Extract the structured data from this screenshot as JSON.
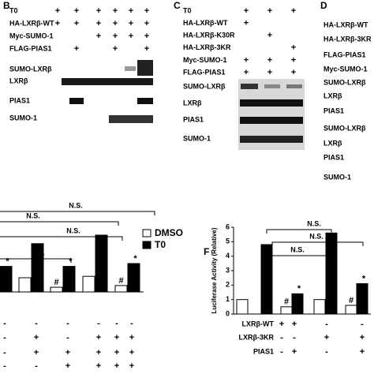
{
  "panels": [
    {
      "label": "B",
      "conditions": [
        {
          "name": "T0",
          "marks": [
            "+",
            "+",
            "+",
            "+",
            "+",
            "+"
          ]
        },
        {
          "name": "HA-LXRβ-WT",
          "marks": [
            "+",
            "+",
            "+",
            "+",
            "+",
            "+"
          ]
        },
        {
          "name": "Myc-SUMO-1",
          "marks": [
            null,
            null,
            "+",
            "+",
            "+",
            "+"
          ]
        },
        {
          "name": "FLAG-PIAS1",
          "marks": [
            null,
            "+",
            null,
            "+",
            null,
            "+"
          ]
        }
      ],
      "bands": [
        "SUMO-LXRβ",
        "LXRβ",
        "PIAS1",
        "SUMO-1"
      ]
    },
    {
      "label": "C",
      "conditions": [
        {
          "name": "T0",
          "marks": [
            "+",
            "+",
            "+"
          ]
        },
        {
          "name": "HA-LXRβ-WT",
          "marks": [
            "+",
            null,
            null
          ]
        },
        {
          "name": "HA-LXRβ-K30R",
          "marks": [
            null,
            "+",
            null
          ]
        },
        {
          "name": "HA-LXRβ-3KR",
          "marks": [
            null,
            null,
            "+"
          ]
        },
        {
          "name": "Myc-SUMO-1",
          "marks": [
            "+",
            "+",
            "+"
          ]
        },
        {
          "name": "FLAG-PIAS1",
          "marks": [
            "+",
            "+",
            "+"
          ]
        }
      ],
      "bands": [
        "SUMO-LXRβ",
        "LXRβ",
        "PIAS1",
        "SUMO-1"
      ]
    },
    {
      "label": "D",
      "labels": [
        "HA-LXRβ-WT",
        "HA-LXRβ-3KR",
        "FLAG-PIAS1",
        "Myc-SUMO-1",
        "SUMO-LXRβ",
        "LXRβ",
        "PIAS1",
        "SUMO-LXRβ",
        "LXRβ",
        "PIAS1",
        "SUMO-1"
      ]
    }
  ],
  "chart_data": [
    {
      "type": "bar",
      "categories": [
        null,
        null,
        null,
        null,
        null
      ],
      "series": [
        {
          "name": "DMSO",
          "color": "#ffffff",
          "values": [
            null,
            1,
            0.33,
            1.1,
            0.45
          ],
          "markers": [
            null,
            null,
            "#",
            null,
            "#"
          ]
        },
        {
          "name": "T0",
          "color": "#000000",
          "values": [
            1.8,
            3.4,
            1.8,
            4.0,
            2.0
          ],
          "markers": [
            "*",
            null,
            "*",
            null,
            "*"
          ]
        }
      ],
      "annotations": [
        "N.S.",
        "N.S.",
        "N.S.",
        "N.S."
      ],
      "rows": [
        [
          "-",
          "-",
          "-",
          "-",
          "-",
          "-"
        ],
        [
          "-",
          "+",
          "-",
          "+",
          "+",
          "+"
        ],
        [
          "-",
          "+",
          "+",
          "+",
          "+",
          "+"
        ],
        [
          "-",
          "-",
          "+",
          "+",
          "+",
          "+"
        ]
      ]
    },
    {
      "type": "bar",
      "label": "F",
      "ylabel": "Luciferase Activity (Relative)",
      "ylim": [
        0,
        6
      ],
      "yticks": [
        0,
        1,
        2,
        3,
        4,
        5,
        6
      ],
      "categories": [
        null,
        null,
        null,
        null
      ],
      "series": [
        {
          "color": "#ffffff",
          "values": [
            1,
            0.5,
            1,
            0.6
          ],
          "markers": [
            null,
            "#",
            null,
            "#"
          ]
        },
        {
          "color": "#000000",
          "values": [
            4.8,
            1.4,
            5.6,
            2.1
          ],
          "markers": [
            null,
            "*",
            null,
            "*"
          ]
        }
      ],
      "annotations": [
        "N.S.",
        "N.S.",
        "N.S."
      ],
      "rows": [
        {
          "name": "LXRβ-WT",
          "marks": [
            "+",
            "+",
            "-",
            "-"
          ]
        },
        {
          "name": "LXRβ-3KR",
          "marks": [
            "-",
            "-",
            "+",
            "+"
          ]
        },
        {
          "name": "PIAS1",
          "marks": [
            "-",
            "+",
            "-",
            "+"
          ]
        }
      ]
    }
  ]
}
